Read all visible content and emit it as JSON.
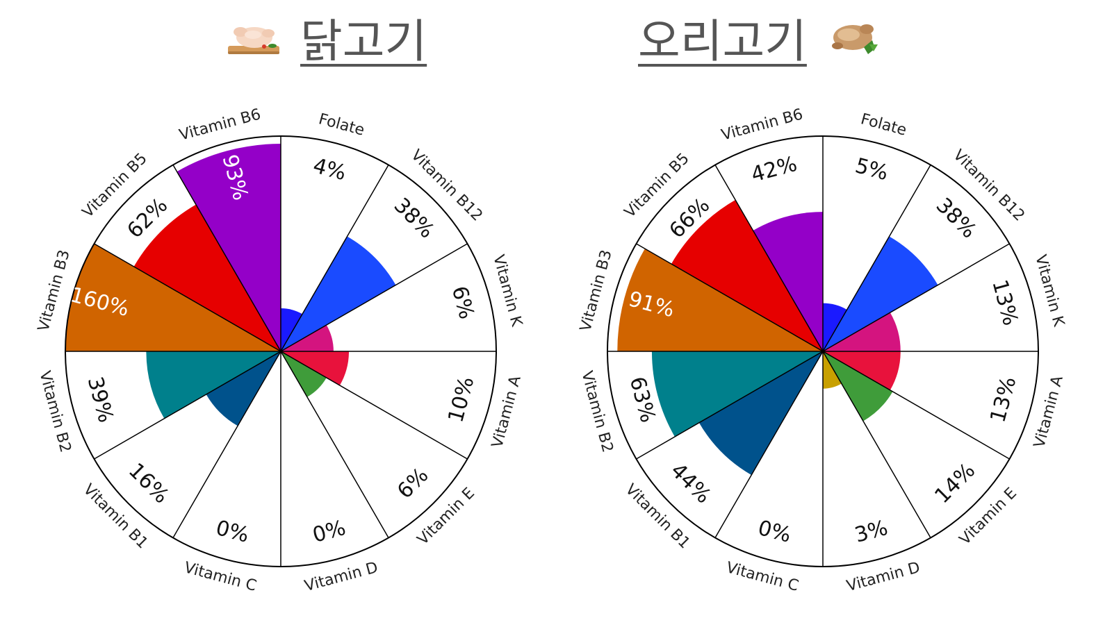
{
  "chart_data": [
    {
      "type": "polar-area",
      "title": "닭고기",
      "icon": "raw-chicken-icon",
      "categories": [
        "Folate",
        "Vitamin B12",
        "Vitamin K",
        "Vitamin A",
        "Vitamin E",
        "Vitamin D",
        "Vitamin C",
        "Vitamin B1",
        "Vitamin B2",
        "Vitamin B3",
        "Vitamin B5",
        "Vitamin B6"
      ],
      "values": [
        4,
        38,
        6,
        10,
        6,
        0,
        0,
        16,
        39,
        160,
        62,
        93
      ],
      "labels": [
        "4%",
        "38%",
        "6%",
        "10%",
        "6%",
        "0%",
        "0%",
        "16%",
        "39%",
        "160%",
        "62%",
        "93%"
      ],
      "colors": [
        "#1a1aff",
        "#1a4bff",
        "#d4147f",
        "#e8123c",
        "#3f9c3a",
        "#c8a000",
        "#7a5a9c",
        "#00528c",
        "#00808c",
        "#d06400",
        "#e60000",
        "#9400c8"
      ],
      "value_max": 100
    },
    {
      "type": "polar-area",
      "title": "오리고기",
      "icon": "roast-duck-icon",
      "categories": [
        "Folate",
        "Vitamin B12",
        "Vitamin K",
        "Vitamin A",
        "Vitamin E",
        "Vitamin D",
        "Vitamin C",
        "Vitamin B1",
        "Vitamin B2",
        "Vitamin B3",
        "Vitamin B5",
        "Vitamin B6"
      ],
      "values": [
        5,
        38,
        13,
        13,
        14,
        3,
        0,
        44,
        63,
        91,
        66,
        42
      ],
      "labels": [
        "5%",
        "38%",
        "13%",
        "13%",
        "14%",
        "3%",
        "0%",
        "44%",
        "63%",
        "91%",
        "66%",
        "42%"
      ],
      "colors": [
        "#1a1aff",
        "#1a4bff",
        "#d4147f",
        "#e8123c",
        "#3f9c3a",
        "#c8a000",
        "#7a5a9c",
        "#00528c",
        "#00808c",
        "#d06400",
        "#e60000",
        "#9400c8"
      ],
      "value_max": 100
    }
  ]
}
